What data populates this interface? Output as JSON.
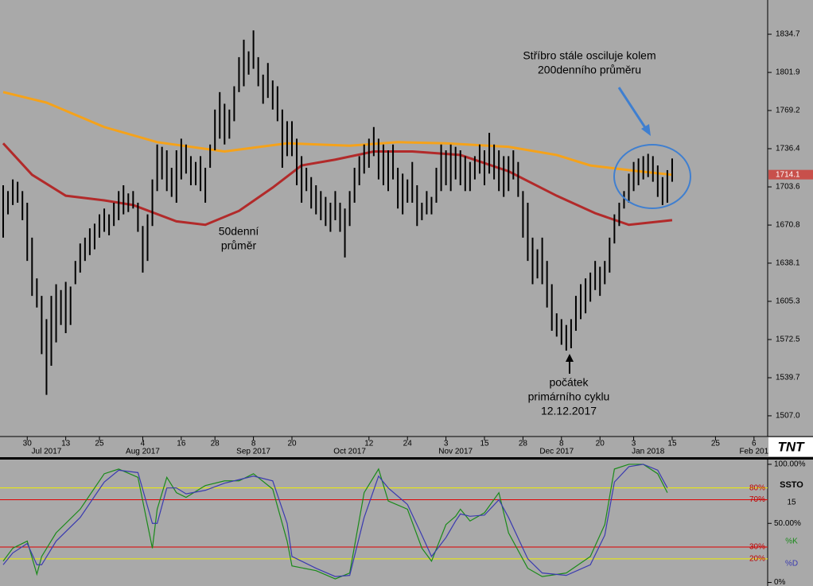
{
  "chart_data": [
    {
      "type": "ohlc",
      "xlim": [
        -0.66,
        158.84
      ],
      "ylim": [
        1489.2,
        1864.1
      ],
      "bar_color": "#000000",
      "yticks": [
        1834.7,
        1801.9,
        1769.2,
        1736.4,
        1703.6,
        1670.8,
        1638.1,
        1605.3,
        1572.5,
        1539.7,
        {
          "value": 1507,
          "label": "1507.0"
        }
      ],
      "xticks": [
        {
          "value": 5,
          "label": "30"
        },
        {
          "value": 13,
          "label": "13"
        },
        {
          "value": 20,
          "label": "25"
        },
        {
          "value": 29,
          "label": "4"
        },
        {
          "value": 37,
          "label": "16"
        },
        {
          "value": 44,
          "label": "28"
        },
        {
          "value": 52,
          "label": "8"
        },
        {
          "value": 60,
          "label": "20"
        },
        {
          "value": 76,
          "label": "12"
        },
        {
          "value": 84,
          "label": "24"
        },
        {
          "value": 92,
          "label": "3"
        },
        {
          "value": 100,
          "label": "15"
        },
        {
          "value": 108,
          "label": "28"
        },
        {
          "value": 116,
          "label": "8"
        },
        {
          "value": 124,
          "label": "20"
        },
        {
          "value": 131,
          "label": "3"
        },
        {
          "value": 139,
          "label": "15"
        },
        {
          "value": 148,
          "label": "25"
        },
        {
          "value": 156,
          "label": "6"
        }
      ],
      "month_ticks": [
        {
          "value": 9,
          "label": "Jul 2017"
        },
        {
          "value": 29,
          "label": "Aug 2017"
        },
        {
          "value": 52,
          "label": "Sep 2017"
        },
        {
          "value": 72,
          "label": "Oct 2017"
        },
        {
          "value": 94,
          "label": "Nov 2017"
        },
        {
          "value": 115,
          "label": "Dec 2017"
        },
        {
          "value": 134,
          "label": "Jan 2018"
        },
        {
          "value": 156,
          "label": "Feb 201"
        }
      ],
      "high": [
        1705,
        1700,
        1710,
        1708,
        1700,
        1690,
        1660,
        1625,
        1610,
        1590,
        1610,
        1620,
        1615,
        1622,
        1618,
        1640,
        1655,
        1660,
        1668,
        1672,
        1680,
        1685,
        1680,
        1690,
        1700,
        1705,
        1698,
        1700,
        1690,
        1670,
        1680,
        1710,
        1740,
        1738,
        1735,
        1720,
        1735,
        1745,
        1740,
        1730,
        1725,
        1730,
        1720,
        1740,
        1770,
        1785,
        1775,
        1770,
        1790,
        1815,
        1830,
        1820,
        1838,
        1815,
        1800,
        1810,
        1795,
        1790,
        1770,
        1760,
        1760,
        1745,
        1730,
        1720,
        1712,
        1705,
        1700,
        1695,
        1690,
        1700,
        1690,
        1685,
        1700,
        1720,
        1730,
        1740,
        1745,
        1755,
        1745,
        1740,
        1735,
        1740,
        1720,
        1715,
        1710,
        1725,
        1705,
        1690,
        1700,
        1695,
        1720,
        1740,
        1735,
        1740,
        1738,
        1735,
        1730,
        1725,
        1730,
        1740,
        1735,
        1750,
        1740,
        1735,
        1730,
        1730,
        1735,
        1725,
        1700,
        1690,
        1660,
        1650,
        1660,
        1640,
        1620,
        1595,
        1590,
        1585,
        1590,
        1610,
        1620,
        1625,
        1630,
        1640,
        1635,
        1640,
        1660,
        1680,
        1690,
        1700,
        1715,
        1725,
        1728,
        1730,
        1732,
        1730,
        1722,
        1712,
        1718,
        1728
      ],
      "low": [
        1660,
        1680,
        1688,
        1690,
        1675,
        1640,
        1610,
        1600,
        1560,
        1525,
        1550,
        1570,
        1585,
        1578,
        1585,
        1620,
        1630,
        1640,
        1645,
        1650,
        1660,
        1665,
        1662,
        1670,
        1675,
        1680,
        1682,
        1685,
        1665,
        1630,
        1640,
        1670,
        1700,
        1710,
        1700,
        1695,
        1690,
        1710,
        1715,
        1705,
        1705,
        1700,
        1690,
        1720,
        1735,
        1745,
        1740,
        1745,
        1760,
        1785,
        1790,
        1800,
        1805,
        1790,
        1775,
        1780,
        1770,
        1760,
        1720,
        1730,
        1730,
        1705,
        1690,
        1700,
        1685,
        1680,
        1675,
        1670,
        1665,
        1675,
        1665,
        1643,
        1670,
        1690,
        1705,
        1715,
        1720,
        1730,
        1710,
        1705,
        1700,
        1710,
        1685,
        1680,
        1690,
        1690,
        1670,
        1675,
        1680,
        1680,
        1690,
        1700,
        1705,
        1700,
        1710,
        1705,
        1700,
        1700,
        1710,
        1715,
        1705,
        1715,
        1710,
        1700,
        1695,
        1700,
        1710,
        1695,
        1660,
        1640,
        1620,
        1625,
        1620,
        1600,
        1580,
        1575,
        1568,
        1563,
        1565,
        1580,
        1590,
        1595,
        1605,
        1615,
        1610,
        1620,
        1630,
        1655,
        1670,
        1685,
        1690,
        1700,
        1705,
        1710,
        1712,
        1708,
        1695,
        1688,
        1690,
        1708
      ],
      "last_value": 1714.1,
      "last_color": "#c8504b",
      "lines": [
        {
          "color": "#f5a21a",
          "x": [
            0,
            9,
            21,
            32,
            46,
            59,
            72,
            82,
            92,
            105,
            115,
            122,
            132,
            139
          ],
          "values": [
            1785,
            1776,
            1755,
            1742,
            1734,
            1741,
            1739,
            1742,
            1741,
            1738,
            1731,
            1722,
            1717,
            1714
          ]
        },
        {
          "color": "#b22a2a",
          "x": [
            0,
            6,
            13,
            21,
            27,
            36,
            42,
            49,
            56,
            62,
            69,
            77,
            85,
            95,
            105,
            115,
            123,
            130,
            139
          ],
          "values": [
            1741,
            1714,
            1696,
            1692,
            1688,
            1674,
            1671,
            1683,
            1703,
            1722,
            1727,
            1734,
            1734,
            1731,
            1717,
            1696,
            1681,
            1671,
            1675
          ]
        }
      ],
      "annotations": [
        [
          "Stříbro stále osciluje kolem",
          "200denního průměru"
        ],
        [
          "50denní",
          "průměr"
        ],
        [
          "počátek",
          "primárního cyklu",
          "12.12.2017"
        ]
      ],
      "logo": "TNT"
    },
    {
      "type": "line",
      "name": "SSTO",
      "period": 15,
      "xlim": [
        -0.66,
        158.84
      ],
      "ylim": [
        -3,
        104
      ],
      "yticks": [
        {
          "value": 100,
          "label": "100.00%"
        },
        {
          "value": 80,
          "label": "80%",
          "line_color": "#f0f000"
        },
        {
          "value": 70,
          "label": "70%",
          "line_color": "#e00000"
        },
        {
          "value": 50,
          "label": "50.00%"
        },
        {
          "value": 30,
          "label": "30%",
          "line_color": "#e00000"
        },
        {
          "value": 20,
          "label": "20%",
          "line_color": "#f0f000"
        },
        {
          "value": 0,
          "label": "0%"
        }
      ],
      "series": [
        {
          "name": "%K",
          "color": "#1a8a1a",
          "x": [
            0,
            2,
            5,
            7,
            8,
            11,
            16,
            21,
            24,
            28,
            31,
            32,
            34,
            36,
            38,
            42,
            46,
            49,
            52,
            56,
            59,
            60,
            65,
            69,
            72,
            75,
            78,
            80,
            84,
            87,
            89,
            92,
            94,
            95,
            97,
            100,
            103,
            105,
            109,
            112,
            117,
            122,
            125,
            127,
            130,
            133,
            136,
            138
          ],
          "values": [
            18,
            29,
            35,
            7,
            22,
            42,
            62,
            92,
            96,
            89,
            29,
            62,
            89,
            76,
            72,
            82,
            86,
            86,
            92,
            79,
            35,
            14,
            10,
            3,
            8,
            76,
            96,
            69,
            62,
            29,
            18,
            49,
            56,
            62,
            52,
            59,
            76,
            42,
            12,
            5,
            8,
            22,
            49,
            96,
            100,
            100,
            92,
            76
          ]
        },
        {
          "name": "%D",
          "color": "#3a3ab0",
          "x": [
            0,
            2,
            5,
            7,
            8,
            11,
            16,
            21,
            24,
            28,
            31,
            32,
            34,
            36,
            38,
            42,
            46,
            49,
            52,
            56,
            59,
            60,
            65,
            69,
            72,
            75,
            78,
            80,
            84,
            87,
            89,
            92,
            94,
            95,
            97,
            100,
            103,
            105,
            109,
            112,
            117,
            122,
            125,
            127,
            130,
            133,
            136,
            138
          ],
          "values": [
            15,
            25,
            33,
            15,
            15,
            35,
            55,
            85,
            95,
            93,
            50,
            50,
            80,
            80,
            75,
            78,
            84,
            87,
            90,
            86,
            50,
            22,
            12,
            5,
            6,
            55,
            90,
            80,
            66,
            40,
            22,
            38,
            52,
            58,
            56,
            57,
            70,
            55,
            20,
            8,
            6,
            15,
            40,
            85,
            98,
            100,
            95,
            80
          ]
        }
      ]
    }
  ]
}
